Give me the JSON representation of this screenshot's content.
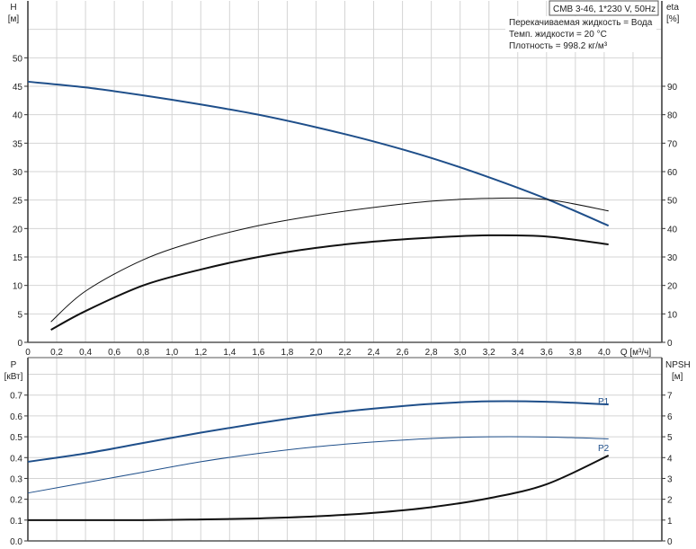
{
  "chart_data": [
    {
      "type": "line",
      "title": "CMB 3-46, 1*230 V, 50Hz",
      "info_lines": [
        "Перекачиваемая жидкость = Вода",
        "Темп. жидкости = 20 °C",
        "Плотность = 998.2 кг/м³"
      ],
      "xlabel": "Q [м³/ч]",
      "ylabel_left": [
        "H",
        "[м]"
      ],
      "ylabel_right": [
        "eta",
        "[%]"
      ],
      "xlim": [
        0,
        4.4
      ],
      "ylim_left": [
        0,
        60
      ],
      "ylim_right": [
        0,
        120
      ],
      "grid": true,
      "x_ticks": [
        "0",
        "0,2",
        "0,4",
        "0,6",
        "0,8",
        "1,0",
        "1,2",
        "1,4",
        "1,6",
        "1,8",
        "2,0",
        "2,2",
        "2,4",
        "2,6",
        "2,8",
        "3,0",
        "3,2",
        "3,4",
        "3,6",
        "3,8",
        "4,0"
      ],
      "y_ticks_left": [
        "0",
        "5",
        "10",
        "15",
        "20",
        "25",
        "30",
        "35",
        "40",
        "45",
        "50"
      ],
      "y_ticks_right": [
        "0",
        "10",
        "20",
        "30",
        "40",
        "50",
        "60",
        "70",
        "80",
        "90"
      ],
      "series": [
        {
          "axis": "left",
          "color": "#1f4f8a",
          "x": [
            0,
            0.4,
            0.8,
            1.2,
            1.6,
            2.0,
            2.4,
            2.8,
            3.2,
            3.6,
            4.03
          ],
          "y": [
            45.8,
            44.8,
            43.4,
            41.8,
            40.0,
            37.8,
            35.3,
            32.4,
            29.0,
            25.2,
            20.5
          ]
        },
        {
          "axis": "right",
          "color": "#111111",
          "x": [
            0.16,
            0.4,
            0.8,
            1.2,
            1.6,
            2.0,
            2.4,
            2.8,
            3.2,
            3.6,
            4.03
          ],
          "y": [
            7.2,
            18.0,
            29.0,
            36.0,
            41.0,
            44.6,
            47.4,
            49.6,
            50.6,
            50.2,
            46.2
          ]
        },
        {
          "axis": "right",
          "color": "#111111",
          "x": [
            0.16,
            0.4,
            0.8,
            1.2,
            1.6,
            2.0,
            2.4,
            2.8,
            3.2,
            3.6,
            4.03
          ],
          "y": [
            4.4,
            11.0,
            20.0,
            25.6,
            30.0,
            33.2,
            35.4,
            36.8,
            37.6,
            37.2,
            34.4
          ]
        }
      ]
    },
    {
      "type": "line",
      "xlabel": "",
      "ylabel_left": [
        "P",
        "[кВт]"
      ],
      "ylabel_right": [
        "NPSH",
        "[м]"
      ],
      "xlim": [
        0,
        4.4
      ],
      "ylim_left": [
        0,
        0.88
      ],
      "ylim_right": [
        0,
        8.8
      ],
      "grid": true,
      "y_ticks_left": [
        "0.0",
        "0.1",
        "0.2",
        "0.3",
        "0.4",
        "0.5",
        "0.6",
        "0.7"
      ],
      "y_ticks_right": [
        "0",
        "1",
        "2",
        "3",
        "4",
        "5",
        "6",
        "7"
      ],
      "series": [
        {
          "name": "P1",
          "axis": "left",
          "color": "#1f4f8a",
          "x": [
            0,
            0.4,
            0.8,
            1.2,
            1.6,
            2.0,
            2.4,
            2.8,
            3.2,
            3.6,
            4.03
          ],
          "y": [
            0.38,
            0.42,
            0.47,
            0.52,
            0.565,
            0.605,
            0.635,
            0.658,
            0.67,
            0.668,
            0.655
          ]
        },
        {
          "name": "P2",
          "axis": "left",
          "color": "#1f4f8a",
          "x": [
            0,
            0.4,
            0.8,
            1.2,
            1.6,
            2.0,
            2.4,
            2.8,
            3.2,
            3.6,
            4.03
          ],
          "y": [
            0.23,
            0.28,
            0.33,
            0.38,
            0.42,
            0.452,
            0.475,
            0.492,
            0.5,
            0.499,
            0.49
          ]
        },
        {
          "axis": "right",
          "color": "#111111",
          "x": [
            0,
            0.8,
            1.2,
            1.6,
            2.0,
            2.4,
            2.8,
            3.2,
            3.6,
            4.03
          ],
          "y": [
            1.0,
            1.0,
            1.03,
            1.08,
            1.18,
            1.35,
            1.62,
            2.05,
            2.72,
            4.1
          ]
        }
      ]
    }
  ]
}
